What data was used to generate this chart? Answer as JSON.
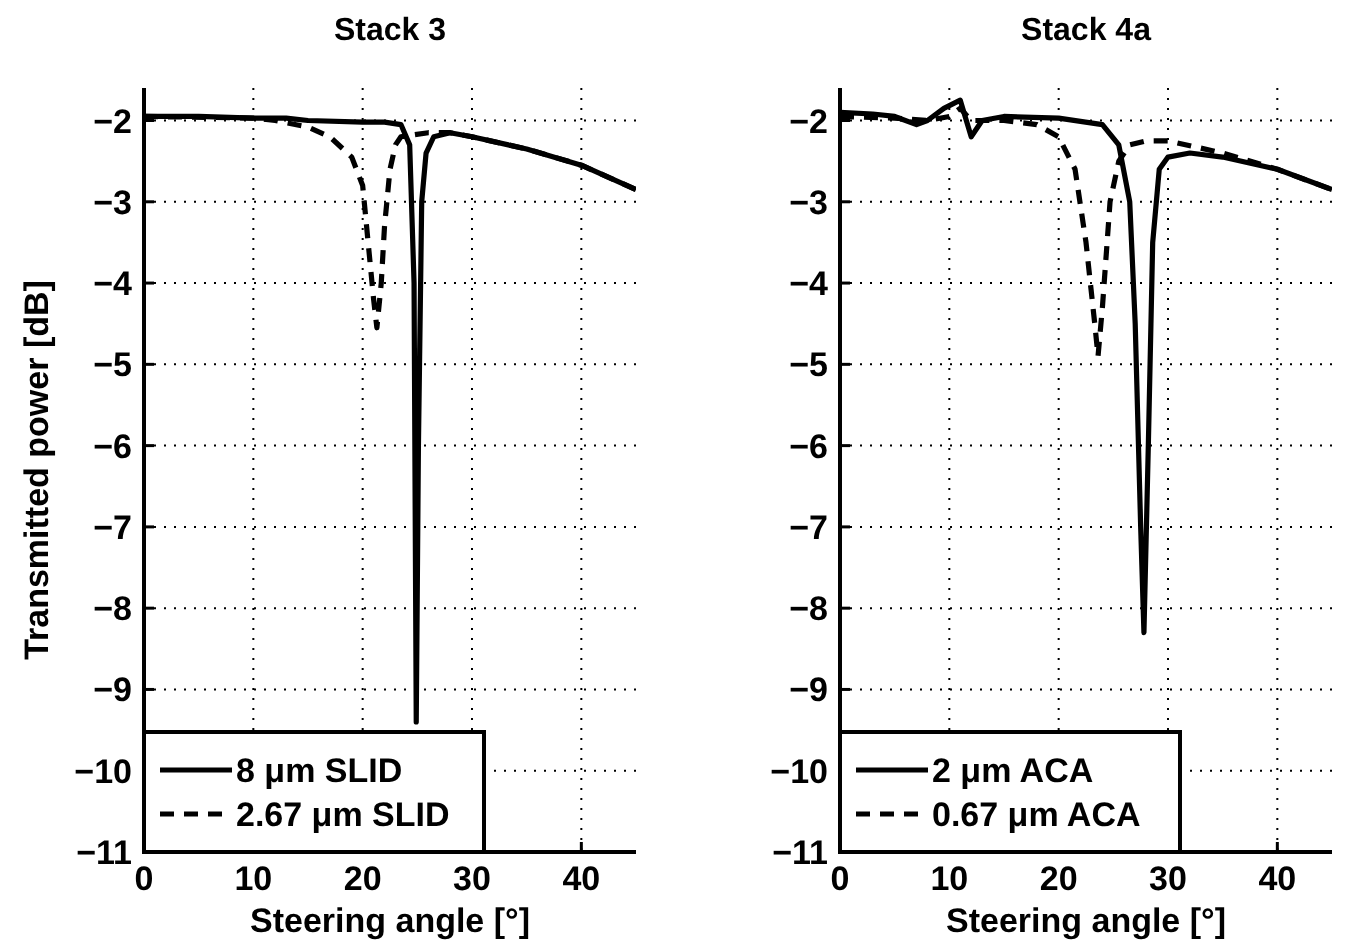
{
  "chart_data": [
    {
      "type": "line",
      "title": "Stack 3",
      "xlabel": "Steering angle [°]",
      "ylabel": "Transmitted power [dB]",
      "xlim": [
        0,
        45
      ],
      "xticks": [
        0,
        10,
        20,
        30,
        40
      ],
      "ylim": [
        -11,
        -1.6
      ],
      "yticks": [
        -2,
        -3,
        -4,
        -5,
        -6,
        -7,
        -8,
        -9,
        -10,
        -11
      ],
      "grid": true,
      "legend": "bottom left",
      "series": [
        {
          "name": "8 μm SLID",
          "color": "#000000",
          "line_style": "solid",
          "x": [
            0,
            5,
            10,
            13,
            15,
            20,
            22,
            23.5,
            24.3,
            24.7,
            24.9,
            25.1,
            25.4,
            25.8,
            26.5,
            28,
            30,
            35,
            40,
            45
          ],
          "values": [
            -1.95,
            -1.95,
            -1.97,
            -1.97,
            -2.0,
            -2.02,
            -2.02,
            -2.05,
            -2.3,
            -4,
            -9.4,
            -6,
            -3,
            -2.4,
            -2.2,
            -2.15,
            -2.2,
            -2.35,
            -2.55,
            -2.85
          ]
        },
        {
          "name": "2.67 μm SLID",
          "color": "#000000",
          "line_style": "dashed",
          "x": [
            0,
            10,
            12,
            15,
            17,
            19,
            20,
            20.5,
            21,
            21.3,
            21.7,
            22,
            22.5,
            23,
            23.5,
            26,
            28,
            30,
            35,
            40,
            45
          ],
          "values": [
            -1.95,
            -1.97,
            -2.0,
            -2.08,
            -2.2,
            -2.45,
            -2.8,
            -3.5,
            -4.2,
            -4.55,
            -4.0,
            -3.3,
            -2.6,
            -2.3,
            -2.2,
            -2.15,
            -2.15,
            -2.2,
            -2.35,
            -2.55,
            -2.85
          ]
        }
      ]
    },
    {
      "type": "line",
      "title": "Stack 4a",
      "xlabel": "Steering angle [°]",
      "xlim": [
        0,
        45
      ],
      "xticks": [
        0,
        10,
        20,
        30,
        40
      ],
      "ylim": [
        -11,
        -1.6
      ],
      "yticks": [
        -2,
        -3,
        -4,
        -5,
        -6,
        -7,
        -8,
        -9,
        -10,
        -11
      ],
      "grid": true,
      "legend": "bottom left",
      "series": [
        {
          "name": "2 μm ACA",
          "color": "#000000",
          "line_style": "solid",
          "x": [
            0,
            3,
            5,
            7,
            8,
            9.5,
            11,
            12,
            13,
            15,
            20,
            24,
            25.5,
            26.5,
            27,
            27.5,
            27.8,
            28.2,
            28.6,
            29.2,
            30,
            32,
            35,
            40,
            45
          ],
          "values": [
            -1.9,
            -1.92,
            -1.95,
            -2.05,
            -2.0,
            -1.85,
            -1.75,
            -2.2,
            -2.0,
            -1.95,
            -1.97,
            -2.05,
            -2.3,
            -3.0,
            -4.5,
            -7,
            -8.3,
            -6,
            -3.5,
            -2.6,
            -2.45,
            -2.4,
            -2.45,
            -2.6,
            -2.85
          ]
        },
        {
          "name": "0.67 μm ACA",
          "color": "#000000",
          "line_style": "dashed",
          "x": [
            0,
            5,
            8,
            10,
            11,
            12,
            15,
            18,
            20,
            21.5,
            22.5,
            23.3,
            23.6,
            24,
            24.7,
            25.5,
            26.5,
            28,
            30,
            35,
            40,
            45
          ],
          "values": [
            -1.95,
            -1.97,
            -2.0,
            -1.95,
            -1.85,
            -2.0,
            -2.0,
            -2.05,
            -2.2,
            -2.6,
            -3.5,
            -4.5,
            -4.9,
            -4.3,
            -3.0,
            -2.5,
            -2.3,
            -2.25,
            -2.25,
            -2.4,
            -2.6,
            -2.85
          ]
        }
      ]
    }
  ]
}
